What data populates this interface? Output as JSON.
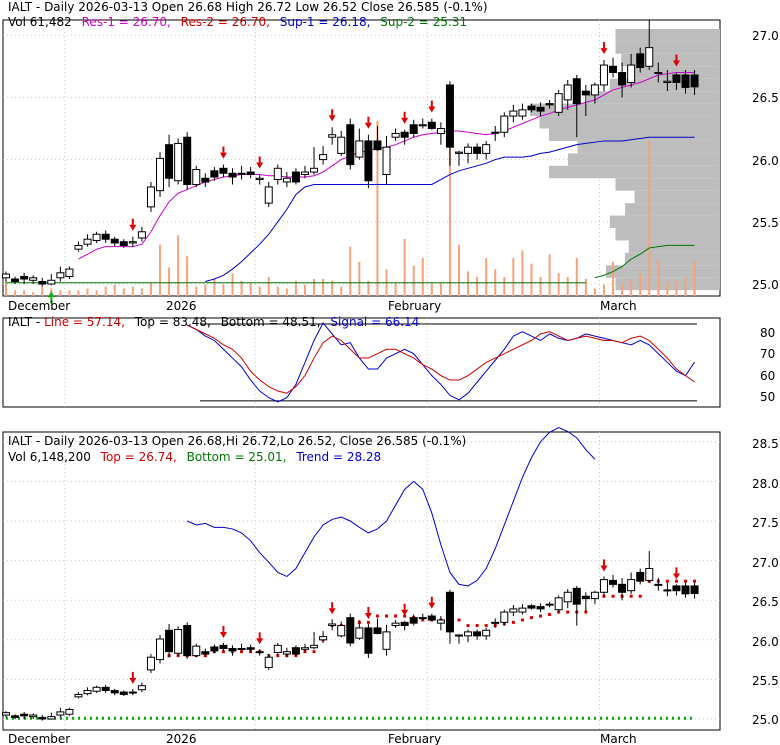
{
  "ticker": "IALT",
  "colors": {
    "res1": "#cc00cc",
    "res2": "#cc0000",
    "sup1": "#0000cc",
    "sup2": "#007700",
    "up": "#ffffff",
    "down": "#000000",
    "volume": "#f5a27a",
    "profile": "#bdbdbd",
    "signal_marker": "#dd0000",
    "buy_marker": "#11aa11"
  },
  "panels": {
    "top": {
      "header1": {
        "prefix": "IALT - Daily 2026-03-13 Open 26.68  High 26.72  Low 26.52  Close 26.585 (-0.1%)"
      },
      "header2": {
        "vol": "Vol 61,482",
        "res1": "Res-1 = 26.70,",
        "res2": "Res-2 = 26.70,",
        "sup1": "Sup-1 = 26.18,",
        "sup2": "Sup-2 = 25.31"
      },
      "yticks": [
        "27.0",
        "26.5",
        "26.0",
        "25.5",
        "25.0"
      ],
      "xlabels": [
        "December",
        "2026",
        "February",
        "March"
      ]
    },
    "middle": {
      "header": {
        "prefix": "IALT - ",
        "line": "Line = 57.14,",
        "top": "Top = 83.48,",
        "bottom": "Bottom = 48.51,",
        "signal": "Signal = 66.14"
      },
      "yticks": [
        "80",
        "70",
        "60",
        "50"
      ]
    },
    "bottom": {
      "header1": {
        "text": "IALT - Daily 2026-03-13 Open 26.68,Hi 26.72,Lo 26.52,  Close 26.585 (-0.1%)"
      },
      "header2": {
        "vol": "Vol 6,148,200",
        "top": "Top = 26.74,",
        "bottom": "Bottom = 25.01,",
        "trend": "Trend = 28.28"
      },
      "yticks": [
        "28.5",
        "28.0",
        "27.5",
        "27.0",
        "26.5",
        "26.0",
        "25.5",
        "25.0"
      ],
      "xlabels": [
        "December",
        "2026",
        "February",
        "March"
      ]
    }
  },
  "chart_data": {
    "type": "candlestick",
    "dates": [
      "11-20",
      "11-21",
      "11-24",
      "11-25",
      "11-26",
      "11-28",
      "12-01",
      "12-02",
      "12-03",
      "12-04",
      "12-05",
      "12-08",
      "12-09",
      "12-10",
      "12-11",
      "12-12",
      "12-15",
      "12-16",
      "12-17",
      "12-18",
      "12-19",
      "12-22",
      "12-23",
      "12-24",
      "12-26",
      "12-29",
      "12-30",
      "12-31",
      "01-02",
      "01-05",
      "01-06",
      "01-07",
      "01-08",
      "01-09",
      "01-12",
      "01-13",
      "01-14",
      "01-15",
      "01-16",
      "01-20",
      "01-21",
      "01-22",
      "01-23",
      "01-26",
      "01-27",
      "01-28",
      "01-29",
      "01-30",
      "02-02",
      "02-03",
      "02-04",
      "02-05",
      "02-06",
      "02-09",
      "02-10",
      "02-11",
      "02-12",
      "02-13",
      "02-17",
      "02-18",
      "02-19",
      "02-20",
      "02-23",
      "02-24",
      "02-25",
      "02-26",
      "02-27",
      "03-02",
      "03-03",
      "03-04",
      "03-05",
      "03-06",
      "03-09",
      "03-10",
      "03-11",
      "03-12",
      "03-13"
    ],
    "open": [
      25.05,
      25.04,
      25.06,
      25.03,
      25.02,
      25.0,
      25.05,
      25.06,
      25.28,
      25.32,
      25.35,
      25.4,
      25.36,
      25.34,
      25.33,
      25.37,
      25.62,
      25.75,
      26.12,
      25.83,
      26.18,
      25.8,
      25.85,
      25.91,
      25.93,
      25.89,
      25.89,
      25.9,
      25.84,
      25.65,
      25.84,
      25.82,
      25.9,
      25.88,
      25.9,
      26.0,
      26.18,
      26.05,
      26.28,
      26.02,
      26.15,
      26.15,
      25.88,
      26.18,
      26.22,
      26.28,
      26.28,
      26.3,
      26.21,
      26.6,
      26.05,
      26.05,
      26.1,
      26.05,
      26.22,
      26.22,
      26.35,
      26.35,
      26.43,
      26.42,
      26.45,
      26.38,
      26.48,
      26.65,
      26.55,
      26.52,
      26.6,
      26.75,
      26.7,
      26.62,
      26.85,
      26.75,
      26.7,
      26.62,
      26.68,
      26.68,
      26.68
    ],
    "close": [
      25.08,
      25.02,
      25.04,
      25.05,
      25.0,
      25.03,
      25.09,
      25.12,
      25.31,
      25.36,
      25.4,
      25.36,
      25.33,
      25.31,
      25.34,
      25.42,
      25.78,
      26.01,
      25.85,
      26.13,
      25.8,
      25.92,
      25.82,
      25.86,
      25.89,
      25.86,
      25.89,
      25.88,
      25.85,
      25.78,
      25.93,
      25.85,
      25.82,
      25.9,
      25.93,
      26.04,
      26.2,
      26.18,
      25.96,
      26.15,
      25.83,
      26.08,
      26.1,
      26.21,
      26.18,
      26.21,
      26.28,
      26.25,
      26.25,
      26.1,
      26.06,
      26.1,
      26.05,
      26.12,
      26.22,
      26.35,
      26.39,
      26.4,
      26.4,
      26.39,
      26.44,
      26.53,
      26.6,
      26.45,
      26.52,
      26.6,
      26.76,
      26.7,
      26.6,
      26.76,
      26.74,
      26.9,
      26.7,
      26.63,
      26.62,
      26.58,
      26.585
    ],
    "high": [
      25.1,
      25.06,
      25.09,
      25.07,
      25.05,
      25.08,
      25.14,
      25.14,
      25.34,
      25.4,
      25.42,
      25.43,
      25.38,
      25.36,
      25.38,
      25.46,
      25.82,
      26.06,
      26.2,
      26.17,
      26.22,
      25.95,
      25.89,
      25.94,
      25.96,
      25.93,
      25.95,
      25.94,
      25.88,
      25.82,
      25.96,
      25.9,
      25.93,
      25.95,
      26.1,
      26.11,
      26.26,
      26.23,
      26.33,
      26.25,
      26.2,
      26.27,
      26.19,
      26.25,
      26.24,
      26.32,
      26.33,
      26.33,
      26.3,
      26.63,
      26.07,
      26.13,
      26.13,
      26.15,
      26.27,
      26.38,
      26.44,
      26.45,
      26.45,
      26.46,
      26.48,
      26.56,
      26.64,
      26.68,
      26.6,
      26.62,
      26.8,
      26.82,
      26.78,
      26.85,
      26.9,
      27.12,
      26.78,
      26.72,
      26.7,
      26.72,
      26.72
    ],
    "low": [
      25.02,
      25.0,
      25.0,
      25.0,
      24.98,
      24.99,
      25.02,
      25.04,
      25.26,
      25.3,
      25.33,
      25.33,
      25.3,
      25.29,
      25.3,
      25.34,
      25.58,
      25.7,
      25.78,
      25.8,
      25.76,
      25.78,
      25.78,
      25.83,
      25.86,
      25.8,
      25.84,
      25.85,
      25.8,
      25.62,
      25.8,
      25.78,
      25.8,
      25.85,
      25.88,
      25.96,
      26.12,
      26.03,
      25.92,
      26.0,
      25.77,
      26.07,
      25.8,
      26.15,
      26.12,
      26.18,
      26.25,
      26.24,
      26.12,
      25.95,
      25.95,
      25.97,
      26.0,
      26.0,
      26.15,
      26.18,
      26.3,
      26.32,
      26.38,
      26.35,
      26.41,
      26.35,
      26.4,
      26.18,
      26.35,
      26.45,
      26.55,
      26.66,
      26.5,
      26.58,
      26.7,
      26.72,
      26.62,
      26.55,
      26.56,
      26.53,
      26.52
    ],
    "volume_relative": [
      0.08,
      0.03,
      0.03,
      0.02,
      0.05,
      0.04,
      0.03,
      0.03,
      0.03,
      0.04,
      0.03,
      0.05,
      0.06,
      0.04,
      0.05,
      0.04,
      0.07,
      0.27,
      0.15,
      0.32,
      0.21,
      0.05,
      0.06,
      0.09,
      0.06,
      0.12,
      0.08,
      0.07,
      0.05,
      0.1,
      0.05,
      0.04,
      0.08,
      0.06,
      0.09,
      0.09,
      0.08,
      0.05,
      0.26,
      0.18,
      0.08,
      0.92,
      0.14,
      0.07,
      0.3,
      0.16,
      0.2,
      0.07,
      0.07,
      0.9,
      0.27,
      0.13,
      0.1,
      0.2,
      0.14,
      0.1,
      0.2,
      0.24,
      0.17,
      0.1,
      0.22,
      0.12,
      0.1,
      0.2,
      0.09,
      0.04,
      0.06,
      0.18,
      0.07,
      0.09,
      0.12,
      0.82,
      0.19,
      0.07,
      0.08,
      0.1,
      0.19
    ],
    "res1_line": [
      null,
      null,
      null,
      null,
      null,
      null,
      null,
      null,
      25.2,
      25.24,
      25.28,
      25.3,
      25.3,
      25.3,
      25.3,
      25.32,
      25.42,
      25.55,
      25.66,
      25.73,
      25.76,
      25.79,
      25.82,
      25.84,
      25.86,
      25.87,
      25.88,
      25.88,
      25.88,
      25.87,
      25.87,
      25.86,
      25.86,
      25.86,
      25.87,
      25.9,
      25.95,
      26.0,
      26.03,
      26.06,
      26.07,
      26.09,
      26.1,
      26.12,
      26.15,
      26.18,
      26.2,
      26.21,
      26.22,
      26.23,
      26.23,
      26.22,
      26.21,
      26.2,
      26.21,
      26.23,
      26.26,
      26.29,
      26.32,
      26.35,
      26.37,
      26.4,
      26.42,
      26.44,
      26.46,
      26.48,
      26.52,
      26.56,
      26.58,
      26.6,
      26.62,
      26.65,
      26.68,
      26.69,
      26.7,
      26.7,
      26.7
    ],
    "sup1_line": [
      null,
      null,
      null,
      null,
      null,
      null,
      null,
      null,
      null,
      null,
      null,
      null,
      null,
      null,
      null,
      null,
      null,
      null,
      null,
      null,
      null,
      null,
      25.02,
      25.04,
      25.07,
      25.12,
      25.18,
      25.25,
      25.32,
      25.4,
      25.5,
      25.6,
      25.72,
      25.78,
      25.8,
      25.8,
      25.8,
      25.8,
      25.8,
      25.8,
      25.8,
      25.8,
      25.8,
      25.8,
      25.8,
      25.8,
      25.8,
      25.8,
      25.84,
      25.88,
      25.91,
      25.93,
      25.95,
      25.97,
      26.0,
      26.02,
      26.02,
      26.02,
      26.03,
      26.05,
      26.06,
      26.08,
      26.1,
      26.12,
      26.13,
      26.14,
      26.15,
      26.15,
      26.15,
      26.16,
      26.17,
      26.18,
      26.18,
      26.18,
      26.18,
      26.18,
      26.18
    ],
    "sup2_line": [
      null,
      null,
      null,
      null,
      null,
      null,
      null,
      null,
      null,
      null,
      null,
      null,
      null,
      null,
      null,
      null,
      null,
      null,
      null,
      null,
      null,
      null,
      null,
      null,
      null,
      null,
      null,
      null,
      null,
      null,
      null,
      null,
      null,
      null,
      null,
      null,
      null,
      null,
      null,
      null,
      null,
      null,
      null,
      null,
      null,
      null,
      null,
      null,
      null,
      null,
      null,
      null,
      null,
      null,
      null,
      null,
      null,
      null,
      null,
      null,
      null,
      null,
      null,
      null,
      null,
      25.05,
      25.07,
      25.1,
      25.14,
      25.2,
      25.24,
      25.29,
      25.3,
      25.31,
      25.31,
      25.31,
      25.31
    ],
    "volume_profile": [
      {
        "price": 27.0,
        "width": 0.55
      },
      {
        "price": 26.9,
        "width": 0.55
      },
      {
        "price": 26.8,
        "width": 0.52
      },
      {
        "price": 26.7,
        "width": 0.48
      },
      {
        "price": 26.6,
        "width": 0.58
      },
      {
        "price": 26.5,
        "width": 0.7
      },
      {
        "price": 26.4,
        "width": 1.0
      },
      {
        "price": 26.3,
        "width": 0.95
      },
      {
        "price": 26.2,
        "width": 0.9
      },
      {
        "price": 26.1,
        "width": 0.75
      },
      {
        "price": 26.0,
        "width": 0.8
      },
      {
        "price": 25.9,
        "width": 0.9
      },
      {
        "price": 25.8,
        "width": 0.55
      },
      {
        "price": 25.7,
        "width": 0.45
      },
      {
        "price": 25.6,
        "width": 0.5
      },
      {
        "price": 25.5,
        "width": 0.58
      },
      {
        "price": 25.4,
        "width": 0.55
      },
      {
        "price": 25.3,
        "width": 0.48
      },
      {
        "price": 25.2,
        "width": 0.5
      },
      {
        "price": 25.1,
        "width": 0.6
      },
      {
        "price": 25.0,
        "width": 0.55
      }
    ],
    "sell_signals": [
      14,
      24,
      28,
      36,
      40,
      44,
      47,
      66,
      74
    ],
    "buy_signals": [
      5
    ],
    "oscillator_line": [
      null,
      null,
      null,
      null,
      null,
      null,
      null,
      null,
      null,
      null,
      null,
      null,
      null,
      null,
      null,
      null,
      null,
      null,
      null,
      null,
      83,
      81,
      79,
      77,
      74,
      72,
      68,
      62,
      58,
      55,
      53,
      52,
      55,
      60,
      68,
      75,
      78,
      76,
      72,
      68,
      68,
      70,
      72,
      72,
      70,
      68,
      65,
      63,
      60,
      58,
      58,
      60,
      63,
      66,
      68,
      70,
      72,
      74,
      76,
      79,
      80,
      78,
      76,
      77,
      78,
      77,
      76,
      76,
      75,
      77,
      78,
      76,
      72,
      68,
      63,
      60,
      57.14
    ],
    "oscillator_signal": [
      null,
      null,
      null,
      null,
      null,
      null,
      null,
      null,
      null,
      null,
      null,
      null,
      null,
      null,
      null,
      null,
      null,
      null,
      null,
      null,
      83,
      81,
      78,
      76,
      72,
      68,
      64,
      58,
      53,
      50,
      48,
      50,
      56,
      66,
      76,
      84,
      79,
      74,
      75,
      68,
      63,
      63,
      68,
      70,
      72,
      70,
      65,
      60,
      56,
      51,
      49,
      52,
      57,
      62,
      67,
      72,
      78,
      80,
      78,
      76,
      79,
      77,
      76,
      77,
      79,
      78,
      77,
      76,
      75,
      74,
      76,
      74,
      70,
      66,
      62,
      60,
      66.14
    ],
    "oscillator_ylim": [
      48,
      83.5
    ],
    "trend_line": [
      null,
      null,
      null,
      null,
      null,
      null,
      null,
      null,
      null,
      null,
      null,
      null,
      null,
      null,
      null,
      null,
      null,
      null,
      null,
      null,
      27.5,
      27.45,
      27.47,
      27.42,
      27.42,
      27.4,
      27.35,
      27.25,
      27.1,
      26.98,
      26.85,
      26.8,
      26.9,
      27.1,
      27.3,
      27.45,
      27.52,
      27.55,
      27.5,
      27.42,
      27.35,
      27.4,
      27.5,
      27.7,
      27.9,
      28.0,
      27.9,
      27.6,
      27.2,
      26.85,
      26.7,
      26.68,
      26.75,
      26.9,
      27.15,
      27.45,
      27.75,
      28.05,
      28.3,
      28.5,
      28.62,
      28.68,
      28.63,
      28.55,
      28.4,
      28.28
    ],
    "trend_top": [
      null,
      null,
      null,
      null,
      null,
      null,
      null,
      null,
      null,
      null,
      null,
      null,
      null,
      null,
      null,
      null,
      null,
      null,
      25.8,
      25.8,
      25.8,
      25.8,
      25.8,
      25.85,
      25.85,
      25.85,
      25.85,
      25.85,
      25.85,
      25.8,
      25.8,
      25.8,
      25.8,
      25.85,
      25.85,
      26.0,
      26.18,
      26.18,
      26.18,
      26.22,
      26.22,
      26.3,
      26.3,
      26.3,
      26.3,
      26.28,
      26.25,
      26.25,
      26.25,
      26.25,
      26.25,
      26.18,
      26.18,
      26.18,
      26.18,
      26.2,
      26.22,
      26.25,
      26.28,
      26.3,
      26.32,
      26.35,
      26.35,
      26.35,
      26.35,
      26.55,
      26.55,
      26.55,
      26.55,
      26.55,
      26.55,
      26.74,
      26.74,
      26.74,
      26.74,
      26.74,
      26.74
    ],
    "trend_bottom": 25.01
  }
}
